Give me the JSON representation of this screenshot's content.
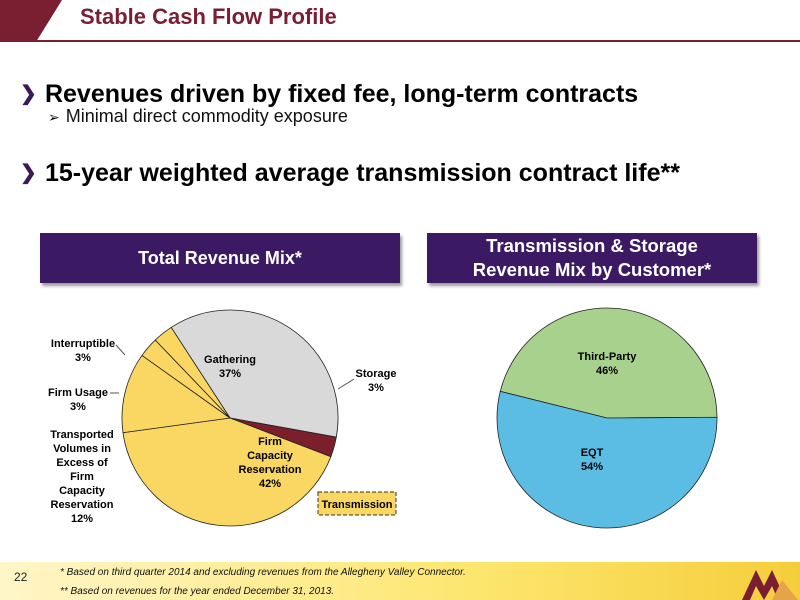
{
  "header": {
    "title": "Stable Cash Flow Profile"
  },
  "bullets": [
    {
      "text": "Revenues driven by fixed fee, long-term contracts",
      "sub": "Minimal direct commodity exposure"
    },
    {
      "text": "15-year weighted average transmission contract life**"
    }
  ],
  "left_panel": {
    "title": "Total Revenue Mix*"
  },
  "right_panel": {
    "title_line1": "Transmission & Storage",
    "title_line2": "Revenue Mix by Customer*"
  },
  "chart_data": [
    {
      "type": "pie",
      "title": "Total Revenue Mix*",
      "slices": [
        {
          "label": "Gathering",
          "value": 37,
          "pct": "37%",
          "color": "#d9d9d9"
        },
        {
          "label": "Storage",
          "value": 3,
          "pct": "3%",
          "color": "#7a1f2b"
        },
        {
          "label": "Firm Capacity Reservation",
          "value": 42,
          "pct": "42%",
          "color": "#fad762"
        },
        {
          "label": "Transported Volumes in Excess of Firm Capacity Reservation",
          "value": 12,
          "pct": "12%",
          "color": "#fad762"
        },
        {
          "label": "Firm Usage",
          "value": 3,
          "pct": "3%",
          "color": "#fad762"
        },
        {
          "label": "Interruptible",
          "value": 3,
          "pct": "3%",
          "color": "#fad762"
        }
      ],
      "annotations": [
        "Transmission"
      ]
    },
    {
      "type": "pie",
      "title": "Transmission & Storage Revenue Mix by Customer*",
      "slices": [
        {
          "label": "Third-Party",
          "value": 46,
          "pct": "46%",
          "color": "#a9d18e"
        },
        {
          "label": "EQT",
          "value": 54,
          "pct": "54%",
          "color": "#5bbde4"
        }
      ]
    }
  ],
  "labels": {
    "gathering": {
      "name": "Gathering",
      "pct": "37%"
    },
    "storage": {
      "name": "Storage",
      "pct": "3%"
    },
    "firm_cap": {
      "l1": "Firm",
      "l2": "Capacity",
      "l3": "Reservation",
      "pct": "42%"
    },
    "interruptible": {
      "name": "Interruptible",
      "pct": "3%"
    },
    "firm_usage": {
      "name": "Firm Usage",
      "pct": "3%"
    },
    "transported": {
      "l1": "Transported",
      "l2": "Volumes in",
      "l3": "Excess of",
      "l4": "Firm",
      "l5": "Capacity",
      "l6": "Reservation",
      "pct": "12%"
    },
    "transmission_box": "Transmission",
    "third_party": {
      "name": "Third-Party",
      "pct": "46%"
    },
    "eqt": {
      "name": "EQT",
      "pct": "54%"
    }
  },
  "footer": {
    "page_number": "22",
    "note1": "*  Based on third quarter 2014 and excluding revenues from the Allegheny Valley Connector.",
    "note2": "** Based on revenues for the year ended December 31, 2013."
  },
  "colors": {
    "brand": "#7a1f32",
    "panel": "#3b1a63",
    "footer": "#fde66e"
  }
}
